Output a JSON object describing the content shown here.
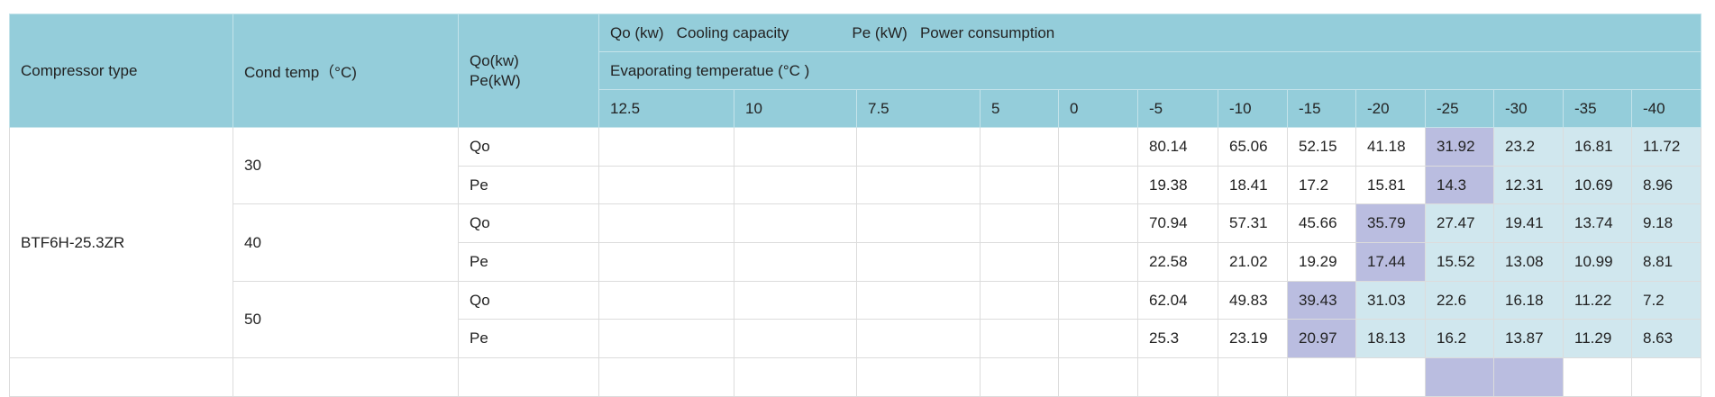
{
  "header": {
    "compressor_type": "Compressor type",
    "cond_temp": "Cond temp（°C)",
    "unit_qo": "Qo(kw)",
    "unit_pe": "Pe(kW)",
    "legend_qo": "Qo (kw)   Cooling capacity",
    "legend_pe": "Pe (kW)   Power consumption",
    "evap_title": "Evaporating temperatue (°C )",
    "evap_temps": [
      "12.5",
      "10",
      "7.5",
      "5",
      "0",
      "-5",
      "-10",
      "-15",
      "-20",
      "-25",
      "-30",
      "-35",
      "-40"
    ]
  },
  "colors": {
    "header": "#94cdda",
    "highlight": "#babde0",
    "light": "#d0e7ee"
  },
  "rows": [
    {
      "type": "BTF6H-25.3ZR",
      "groups": [
        {
          "cond": "30",
          "qo": [
            "",
            "",
            "",
            "",
            "",
            "80.14",
            "65.06",
            "52.15",
            "41.18",
            "31.92",
            "23.2",
            "16.81",
            "11.72"
          ],
          "pe": [
            "",
            "",
            "",
            "",
            "",
            "19.38",
            "18.41",
            "17.2",
            "15.81",
            "14.3",
            "12.31",
            "10.69",
            "8.96"
          ],
          "highlight_col": "-25"
        },
        {
          "cond": "40",
          "qo": [
            "",
            "",
            "",
            "",
            "",
            "70.94",
            "57.31",
            "45.66",
            "35.79",
            "27.47",
            "19.41",
            "13.74",
            "9.18"
          ],
          "pe": [
            "",
            "",
            "",
            "",
            "",
            "22.58",
            "21.02",
            "19.29",
            "17.44",
            "15.52",
            "13.08",
            "10.99",
            "8.81"
          ],
          "highlight_col": "-20"
        },
        {
          "cond": "50",
          "qo": [
            "",
            "",
            "",
            "",
            "",
            "62.04",
            "49.83",
            "39.43",
            "31.03",
            "22.6",
            "16.18",
            "11.22",
            "7.2"
          ],
          "pe": [
            "",
            "",
            "",
            "",
            "",
            "25.3",
            "23.19",
            "20.97",
            "18.13",
            "16.2",
            "13.87",
            "11.29",
            "8.63"
          ],
          "highlight_col": "-15"
        }
      ]
    }
  ],
  "row_labels": {
    "qo": "Qo",
    "pe": "Pe"
  }
}
